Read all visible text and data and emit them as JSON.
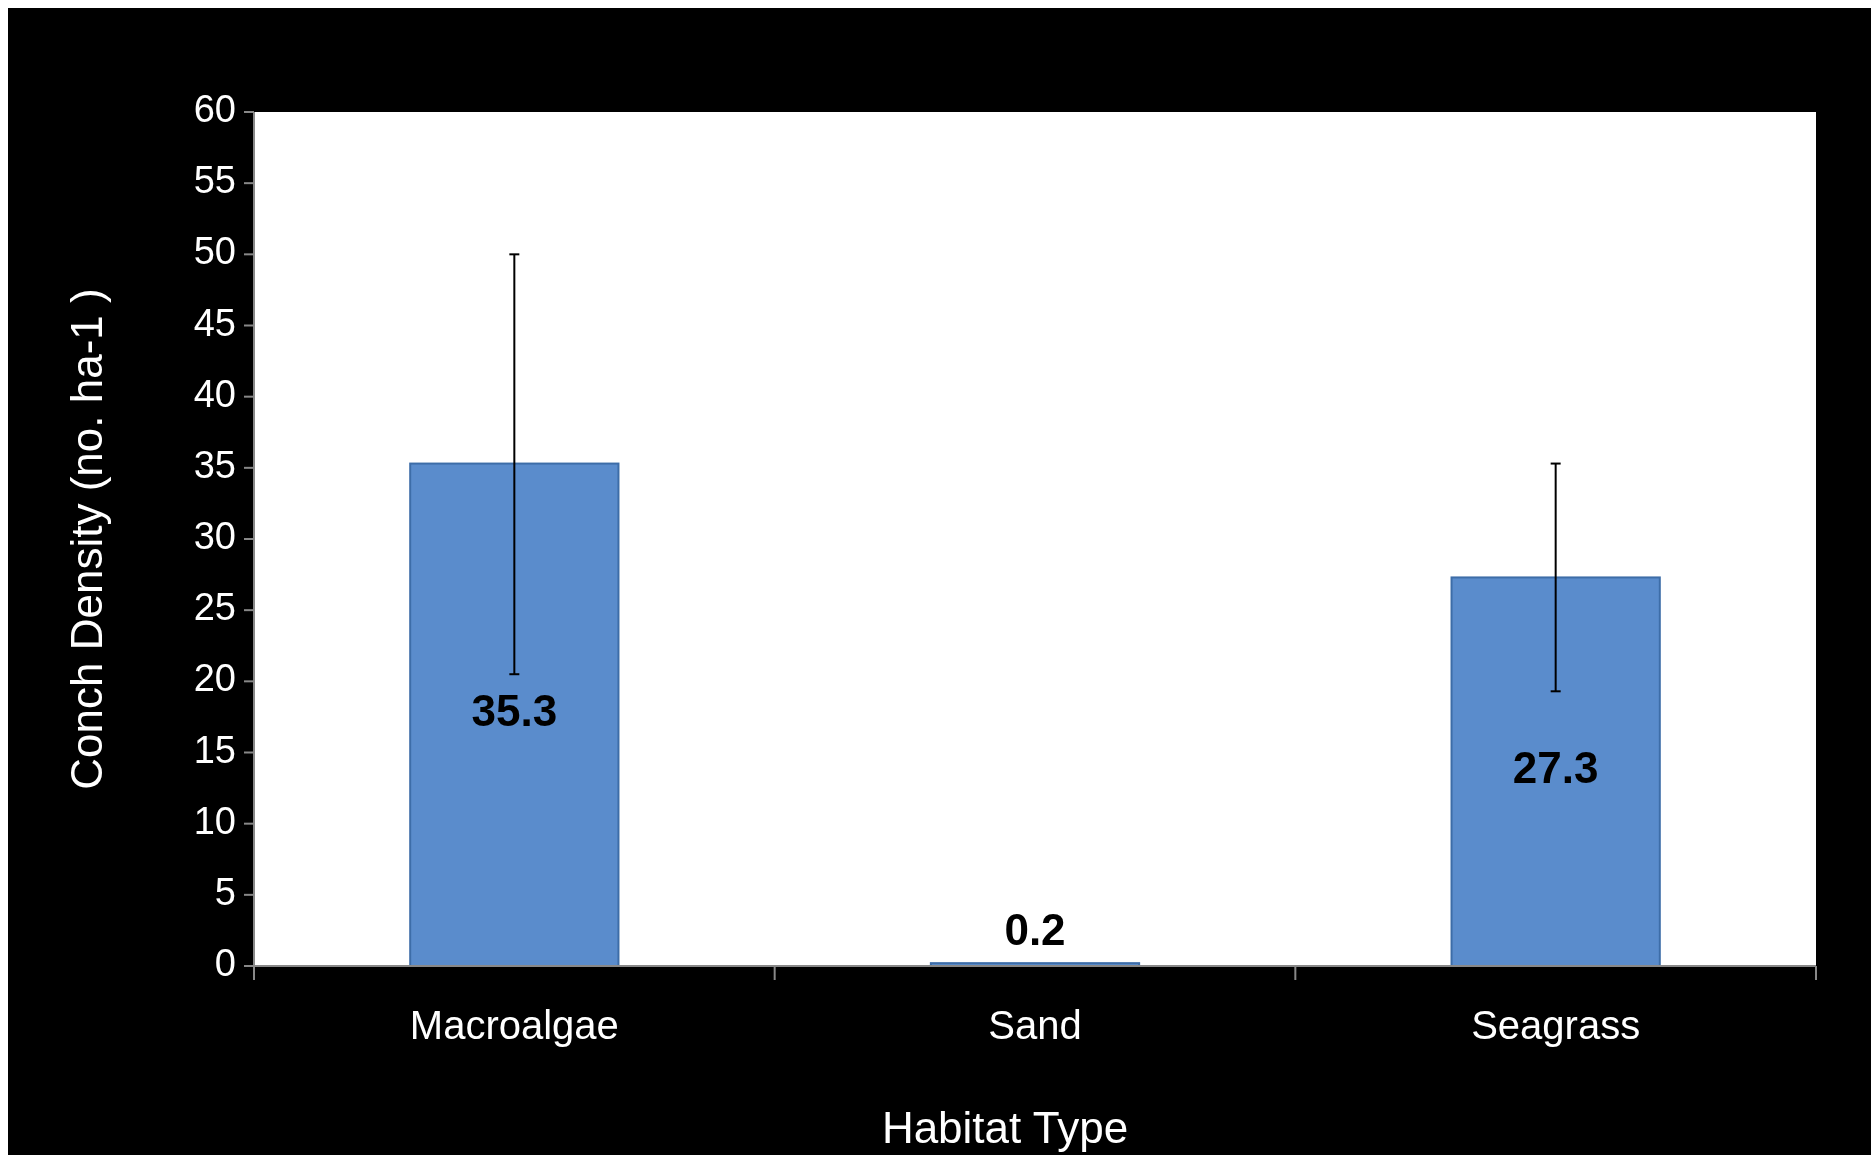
{
  "chart_data": {
    "type": "bar",
    "xlabel": "Habitat Type",
    "ylabel": "Conch Density (no. ha-1 )",
    "categories": [
      "Macroalgae",
      "Sand",
      "Seagrass"
    ],
    "values": [
      35.3,
      0.2,
      27.3
    ],
    "errors": [
      [
        20.5,
        50
      ],
      null,
      [
        19.3,
        35.3
      ]
    ],
    "color": "#5a8ccc",
    "ylim": [
      0,
      60
    ],
    "yticks": [
      0,
      5,
      10,
      15,
      20,
      25,
      30,
      35,
      40,
      45,
      50,
      55,
      60
    ],
    "grid": false,
    "data_labels": true
  }
}
